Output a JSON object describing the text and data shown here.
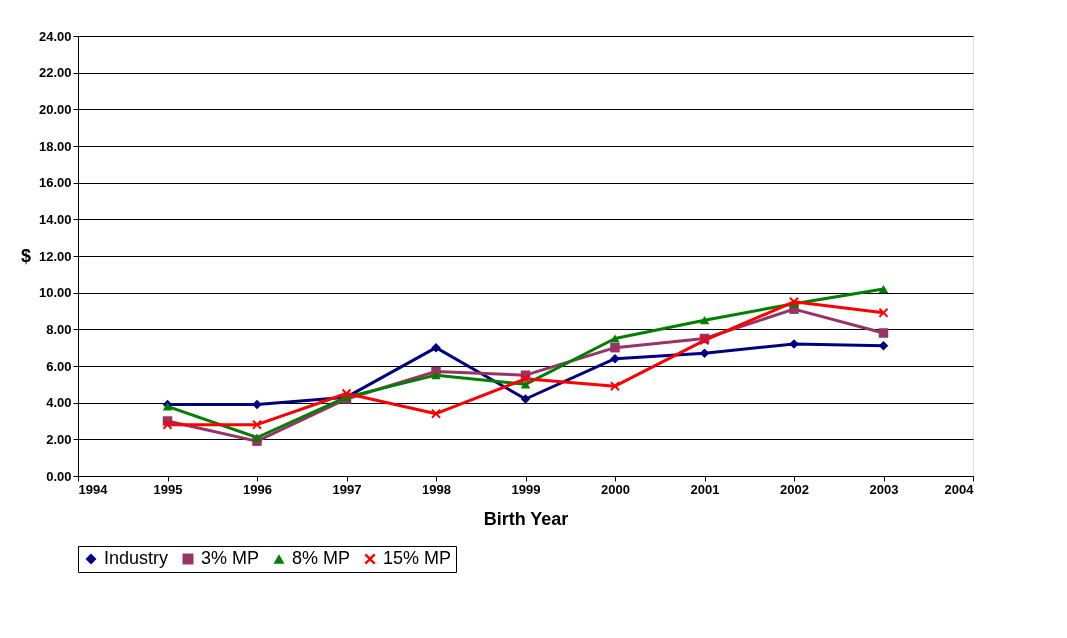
{
  "chart_data": {
    "type": "line",
    "xlabel": "Birth Year",
    "ylabel": "$",
    "x": [
      1995,
      1996,
      1997,
      1998,
      1999,
      2000,
      2001,
      2002,
      2003
    ],
    "series": [
      {
        "name": "Industry",
        "color": "#000080",
        "marker": "diamond",
        "values": [
          3.9,
          3.9,
          4.3,
          7.0,
          4.2,
          6.4,
          6.7,
          7.2,
          7.1
        ]
      },
      {
        "name": "3% MP",
        "color": "#993366",
        "marker": "square",
        "values": [
          3.0,
          1.9,
          4.2,
          5.7,
          5.5,
          7.0,
          7.5,
          9.1,
          7.8
        ]
      },
      {
        "name": "8% MP",
        "color": "#008000",
        "marker": "triangle",
        "values": [
          3.8,
          2.1,
          4.3,
          5.5,
          5.0,
          7.5,
          8.5,
          9.4,
          10.2
        ]
      },
      {
        "name": "15% MP",
        "color": "#ff0000",
        "marker": "cross",
        "values": [
          2.8,
          2.8,
          4.5,
          3.4,
          5.3,
          4.9,
          7.4,
          9.5,
          8.9
        ]
      }
    ],
    "xlim": [
      1994,
      2004
    ],
    "xticks": [
      1994,
      1995,
      1996,
      1997,
      1998,
      1999,
      2000,
      2001,
      2002,
      2003,
      2004
    ],
    "ylim": [
      0,
      24
    ],
    "yticks": [
      {
        "value": 0,
        "label": "0.00"
      },
      {
        "value": 2,
        "label": "2.00"
      },
      {
        "value": 4,
        "label": "4.00"
      },
      {
        "value": 6,
        "label": "6.00"
      },
      {
        "value": 8,
        "label": "8.00"
      },
      {
        "value": 10,
        "label": "10.00"
      },
      {
        "value": 12,
        "label": "12.00"
      },
      {
        "value": 14,
        "label": "14.00"
      },
      {
        "value": 16,
        "label": "16.00"
      },
      {
        "value": 18,
        "label": "18.00"
      },
      {
        "value": 20,
        "label": "20.00"
      },
      {
        "value": 22,
        "label": "22.00"
      },
      {
        "value": 24,
        "label": "24.00"
      }
    ],
    "grid": "y",
    "legend": "bottom"
  }
}
